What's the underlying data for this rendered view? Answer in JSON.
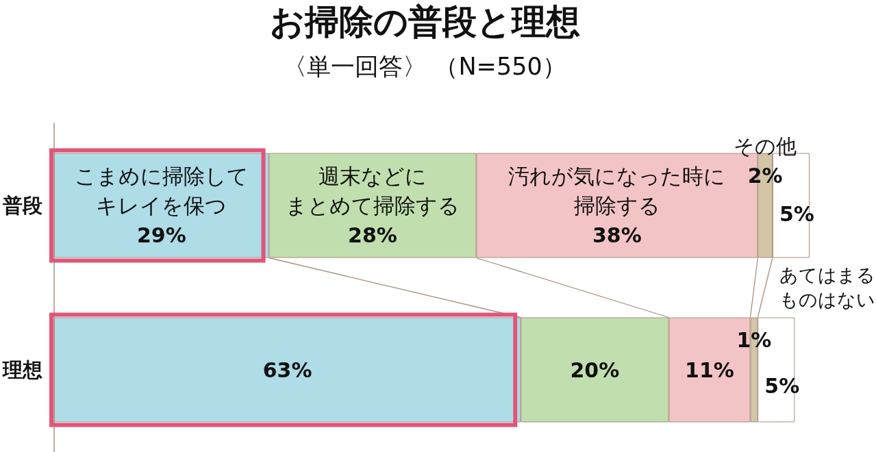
{
  "chart_data": {
    "type": "bar",
    "orientation": "horizontal",
    "stacked": true,
    "title": "お掃除の普段と理想",
    "subtitle": "〈単一回答〉 （N=550）",
    "tick_labels": "y",
    "categories": [
      "普段",
      "理想"
    ],
    "series": [
      {
        "name": "こまめに掃除してキレイを保つ",
        "color": "#aedce7",
        "values": [
          29,
          63
        ],
        "value_labels": [
          "29%",
          "63%"
        ]
      },
      {
        "name": "週末などにまとめて掃除する",
        "color": "#c1dfae",
        "values": [
          28,
          20
        ],
        "value_labels": [
          "28%",
          "20%"
        ]
      },
      {
        "name": "汚れが気になった時に掃除する",
        "color": "#f3c4c6",
        "values": [
          38,
          11
        ],
        "value_labels": [
          "38%",
          "11%"
        ]
      },
      {
        "name": "その他",
        "color": "#d3c5a5",
        "values": [
          2,
          1
        ],
        "value_labels": [
          "2%",
          "1%"
        ]
      },
      {
        "name": "あてはまるものはない",
        "color": "#ffffff",
        "values": [
          5,
          5
        ],
        "value_labels": [
          "5%",
          "5%"
        ]
      }
    ]
  }
}
